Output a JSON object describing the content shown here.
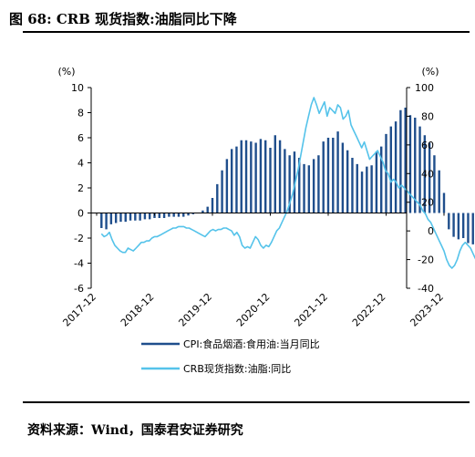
{
  "header": {
    "title": "图 68: CRB 现货指数:油脂同比下降"
  },
  "footer": {
    "source": "资料来源：Wind，国泰君安证券研究"
  },
  "chart_data": {
    "type": "bar+line",
    "left_axis": {
      "unit": "(%)",
      "ylim": [
        -6,
        10
      ],
      "ticks": [
        -6,
        -4,
        -2,
        0,
        2,
        4,
        6,
        8,
        10
      ]
    },
    "right_axis": {
      "unit": "(%)",
      "ylim": [
        -40,
        100
      ],
      "ticks": [
        -40,
        -20,
        0,
        20,
        40,
        60,
        80,
        100
      ]
    },
    "x_ticks": [
      "2017-12",
      "2018-12",
      "2019-12",
      "2020-12",
      "2021-12",
      "2022-12",
      "2023-12"
    ],
    "colors": {
      "bar": "#1f4e8c",
      "line": "#55c3ea",
      "axis": "#000000"
    },
    "series": [
      {
        "name": "CPI:食品烟酒:食用油:当月同比",
        "axis": "left",
        "kind": "bar",
        "start": "2018-01",
        "values": [
          -1.2,
          -1.3,
          -0.9,
          -0.8,
          -0.7,
          -0.7,
          -0.6,
          -0.6,
          -0.6,
          -0.5,
          -0.5,
          -0.4,
          -0.4,
          -0.4,
          -0.3,
          -0.3,
          -0.3,
          -0.3,
          -0.2,
          -0.1,
          0.0,
          0.2,
          0.5,
          1.2,
          2.3,
          3.4,
          4.3,
          5.1,
          5.3,
          5.8,
          5.8,
          5.7,
          5.6,
          5.9,
          5.8,
          5.2,
          6.2,
          5.8,
          5.1,
          4.6,
          4.9,
          4.4,
          3.9,
          3.8,
          4.3,
          4.6,
          5.7,
          6.0,
          6.0,
          6.5,
          5.6,
          5.0,
          4.4,
          3.9,
          3.3,
          3.7,
          3.8,
          4.9,
          5.3,
          6.3,
          6.9,
          7.3,
          8.2,
          8.4,
          7.8,
          7.6,
          6.9,
          6.2,
          5.6,
          4.6,
          3.4,
          1.6,
          -1.3,
          -1.9,
          -2.1,
          -2.0,
          -2.4,
          -2.5,
          -2.8,
          -3.4,
          -3.9,
          -4.0,
          -4.2
        ]
      },
      {
        "name": "CRB现货指数:油脂:同比",
        "axis": "right",
        "kind": "line",
        "start": "2018-01",
        "step_weeks": true,
        "values": [
          -2,
          -4,
          -3,
          -1,
          -6,
          -10,
          -12,
          -14,
          -15,
          -15,
          -12,
          -13,
          -14,
          -12,
          -10,
          -8,
          -8,
          -7,
          -7,
          -5,
          -4,
          -4,
          -3,
          -2,
          -1,
          0,
          1,
          2,
          2,
          3,
          3,
          3,
          2,
          2,
          1,
          0,
          -1,
          -2,
          -3,
          -4,
          -2,
          0,
          1,
          0,
          1,
          1,
          2,
          2,
          1,
          0,
          -3,
          -1,
          -4,
          -10,
          -12,
          -11,
          -12,
          -8,
          -4,
          -6,
          -10,
          -12,
          -10,
          -11,
          -8,
          -4,
          0,
          2,
          6,
          10,
          14,
          20,
          26,
          34,
          42,
          52,
          62,
          72,
          80,
          88,
          93,
          88,
          82,
          86,
          90,
          80,
          86,
          84,
          82,
          88,
          86,
          78,
          80,
          84,
          74,
          70,
          66,
          62,
          58,
          62,
          56,
          50,
          52,
          54,
          56,
          52,
          48,
          42,
          40,
          34,
          36,
          34,
          30,
          32,
          30,
          28,
          26,
          24,
          22,
          20,
          18,
          14,
          12,
          8,
          6,
          2,
          -2,
          -6,
          -10,
          -14,
          -20,
          -24,
          -26,
          -24,
          -20,
          -14,
          -10,
          -8,
          -10,
          -12,
          -16,
          -20,
          -22,
          -26,
          -28,
          -24,
          -22,
          -26,
          -28,
          -30
        ]
      }
    ]
  }
}
